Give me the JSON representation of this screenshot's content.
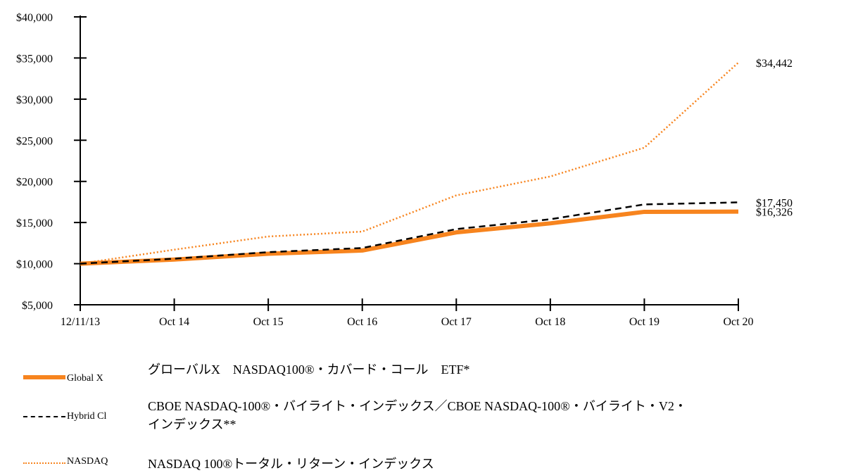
{
  "chart_data": {
    "type": "line",
    "x": [
      "12/11/13",
      "Oct 14",
      "Oct 15",
      "Oct 16",
      "Oct 17",
      "Oct 18",
      "Oct 19",
      "Oct 20"
    ],
    "ylim": [
      5000,
      40000
    ],
    "y_ticks": [
      "$5,000",
      "$10,000",
      "$15,000",
      "$20,000",
      "$25,000",
      "$30,000",
      "$35,000",
      "$40,000"
    ],
    "y_tick_values": [
      5000,
      10000,
      15000,
      20000,
      25000,
      30000,
      35000,
      40000
    ],
    "grid": false,
    "legend_position": "bottom",
    "series": [
      {
        "name": "Global X",
        "legend_text": "グローバルX　NASDAQ100®・カバード・コール　ETF*",
        "style": "solid-thick",
        "color": "#F7841E",
        "values": [
          10000,
          10500,
          11200,
          11600,
          13800,
          14900,
          16300,
          16326
        ],
        "end_label": "$16,326"
      },
      {
        "name": "Hybrid Cl",
        "legend_text_lines": [
          "CBOE NASDAQ-100®・バイライト・インデックス／CBOE NASDAQ-100®・バイライト・V2・",
          "インデックス**"
        ],
        "style": "dashed",
        "color": "#000000",
        "values": [
          10000,
          10600,
          11400,
          11900,
          14200,
          15400,
          17200,
          17450
        ],
        "end_label": "$17,450"
      },
      {
        "name": "NASDAQ",
        "legend_text": "NASDAQ 100®トータル・リターン・インデックス",
        "style": "dotted",
        "color": "#F7841E",
        "values": [
          10000,
          11700,
          13300,
          13900,
          18300,
          20600,
          24100,
          34442
        ],
        "end_label": "$34,442"
      }
    ]
  }
}
